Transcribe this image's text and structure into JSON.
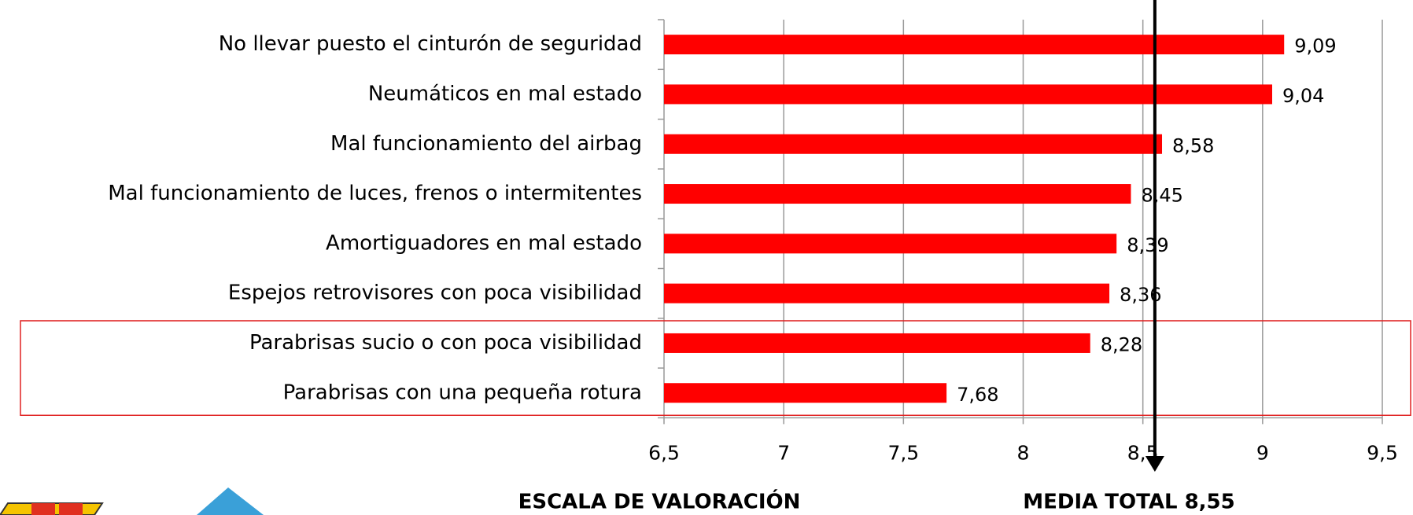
{
  "chart_data": {
    "type": "barh",
    "categories": [
      "No llevar puesto el cinturón de seguridad",
      "Neumáticos en mal estado",
      "Mal funcionamiento del airbag",
      "Mal funcionamiento de luces, frenos o intermitentes",
      "Amortiguadores en mal estado",
      "Espejos retrovisores con poca visibilidad",
      "Parabrisas sucio o con poca visibilidad",
      "Parabrisas con una pequeña rotura"
    ],
    "values": [
      9.09,
      9.04,
      8.58,
      8.45,
      8.39,
      8.36,
      8.28,
      7.68
    ],
    "value_labels": [
      "9,09",
      "9,04",
      "8,58",
      "8,45",
      "8,39",
      "8,36",
      "8,28",
      "7,68"
    ],
    "color": "#ff0000",
    "xlim": [
      6.5,
      9.5
    ],
    "xticks": [
      {
        "value": 6.5,
        "label": "6,5"
      },
      7,
      {
        "value": 7.5,
        "label": "7,5"
      },
      8,
      {
        "value": 8.5,
        "label": "8,5"
      },
      9,
      {
        "value": 9.5,
        "label": "9,5"
      }
    ],
    "grid": true,
    "x_label": "ESCALA DE VALORACIÓN",
    "reference_line": {
      "value": 8.55,
      "label": "MEDIA TOTAL 8,55"
    },
    "highlight_categories": [
      6,
      7
    ]
  }
}
